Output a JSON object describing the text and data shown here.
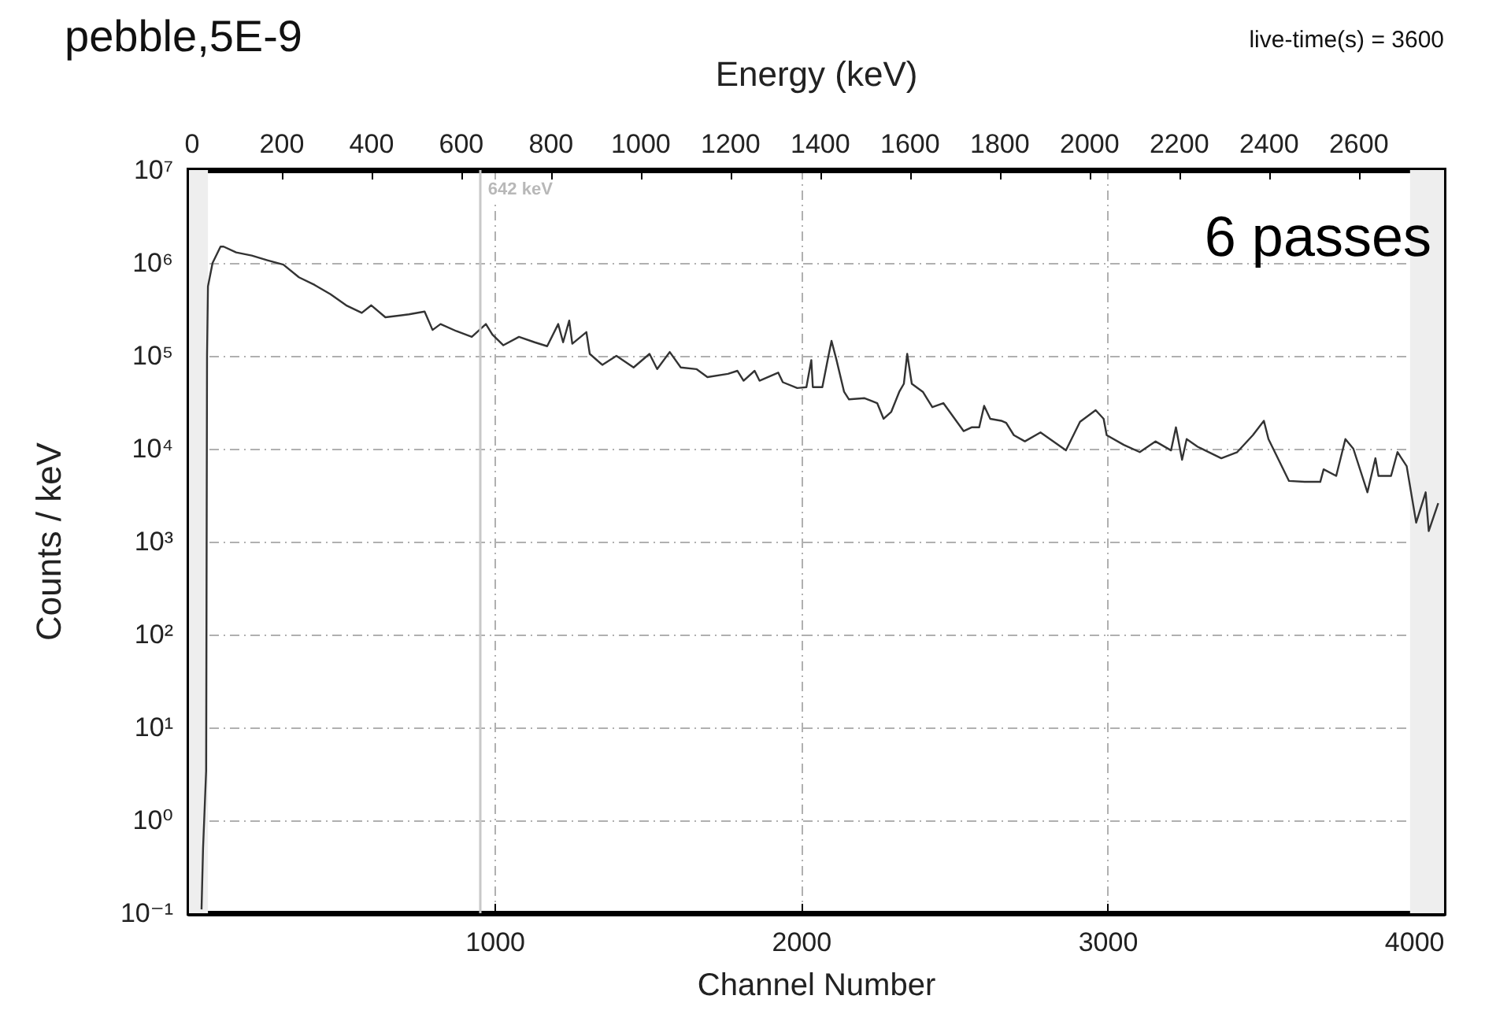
{
  "chart_data": {
    "type": "line",
    "title": "pebble,5E-9",
    "xlabel": "Channel Number",
    "x2label": "Energy (keV)",
    "ylabel": "Counts / keV",
    "annotations": [
      "live-time(s) = 3600",
      "6 passes"
    ],
    "x": [
      41,
      46,
      51,
      56,
      59,
      62,
      77,
      103,
      113,
      154,
      205,
      256,
      308,
      359,
      410,
      462,
      513,
      564,
      595,
      641,
      718,
      769,
      795,
      821,
      872,
      923,
      969,
      990,
      1026,
      1077,
      1128,
      1169,
      1205,
      1221,
      1241,
      1251,
      1297,
      1308,
      1349,
      1395,
      1451,
      1503,
      1528,
      1569,
      1605,
      1656,
      1692,
      1759,
      1790,
      1810,
      1846,
      1862,
      1923,
      1938,
      1985,
      2015,
      2031,
      2036,
      2067,
      2087,
      2097,
      2113,
      2138,
      2154,
      2205,
      2246,
      2267,
      2292,
      2318,
      2333,
      2344,
      2359,
      2395,
      2426,
      2462,
      2528,
      2554,
      2579,
      2595,
      2615,
      2651,
      2667,
      2692,
      2728,
      2779,
      2862,
      2908,
      2959,
      2985,
      2995,
      3051,
      3103,
      3154,
      3205,
      3221,
      3241,
      3256,
      3292,
      3369,
      3421,
      3472,
      3508,
      3523,
      3590,
      3641,
      3692,
      3703,
      3744,
      3774,
      3800,
      3846,
      3872,
      3882,
      3923,
      3944,
      3974,
      4005,
      4036,
      4046,
      4077
    ],
    "series": [
      {
        "color": "#333333",
        "values": [
          0.11,
          0.5,
          1.3,
          3.4,
          100000,
          560000,
          1000000,
          1500000,
          1500000,
          1300000,
          1200000,
          1070000,
          960000,
          700000,
          580000,
          460000,
          350000,
          290000,
          350000,
          260000,
          280000,
          300000,
          190000,
          220000,
          185000,
          160000,
          220000,
          170000,
          130000,
          160000,
          140000,
          127000,
          220000,
          140000,
          240000,
          135000,
          180000,
          105000,
          80000,
          100000,
          75000,
          105000,
          72000,
          110000,
          75000,
          72000,
          59000,
          64000,
          69000,
          54000,
          69000,
          54000,
          66000,
          52000,
          45000,
          46000,
          90000,
          46000,
          46000,
          100000,
          145000,
          91000,
          41000,
          34000,
          35000,
          31000,
          21000,
          25000,
          41000,
          50000,
          105000,
          50000,
          41000,
          28000,
          31000,
          15500,
          17000,
          17000,
          29000,
          21000,
          20000,
          19000,
          14000,
          12000,
          15000,
          9600,
          19500,
          26000,
          21000,
          14000,
          11000,
          9200,
          12000,
          9600,
          17000,
          7600,
          12700,
          10500,
          7900,
          9200,
          14000,
          20000,
          12700,
          4500,
          4400,
          4400,
          6000,
          5100,
          12700,
          10000,
          3400,
          7900,
          5100,
          5100,
          9200,
          6500,
          1600,
          3400,
          1300,
          2600
        ]
      }
    ],
    "xlim": [
      0,
      4096
    ],
    "xticks": [
      1000,
      2000,
      3000,
      4000
    ],
    "x2lim": [
      -7,
      2790
    ],
    "x2ticks": [
      0,
      200,
      400,
      600,
      800,
      1000,
      1200,
      1400,
      1600,
      1800,
      2000,
      2200,
      2400,
      2600
    ],
    "ylim": [
      0.1,
      10000000
    ],
    "log": "y",
    "yticks": [
      {
        "value": 0.1,
        "label": "10⁻¹"
      },
      {
        "value": 1,
        "label": "10⁰"
      },
      {
        "value": 10,
        "label": "10¹"
      },
      {
        "value": 100,
        "label": "10²"
      },
      {
        "value": 1000,
        "label": "10³"
      },
      {
        "value": 10000,
        "label": "10⁴"
      },
      {
        "value": 100000,
        "label": "10⁵"
      },
      {
        "value": 1000000,
        "label": "10⁶"
      },
      {
        "value": 10000000,
        "label": "10⁷"
      }
    ],
    "ref_lines": [
      {
        "axis": "x2",
        "value": 642,
        "label": "642 keV",
        "color": "#c8c8c8"
      }
    ],
    "bands": [
      {
        "axis": "x",
        "from": 0,
        "to": 62,
        "color": "#eeeeee"
      },
      {
        "axis": "x",
        "from": 3985,
        "to": 4096,
        "color": "#eeeeee"
      }
    ],
    "grid": true,
    "marker": "none",
    "line_style": "solid"
  }
}
